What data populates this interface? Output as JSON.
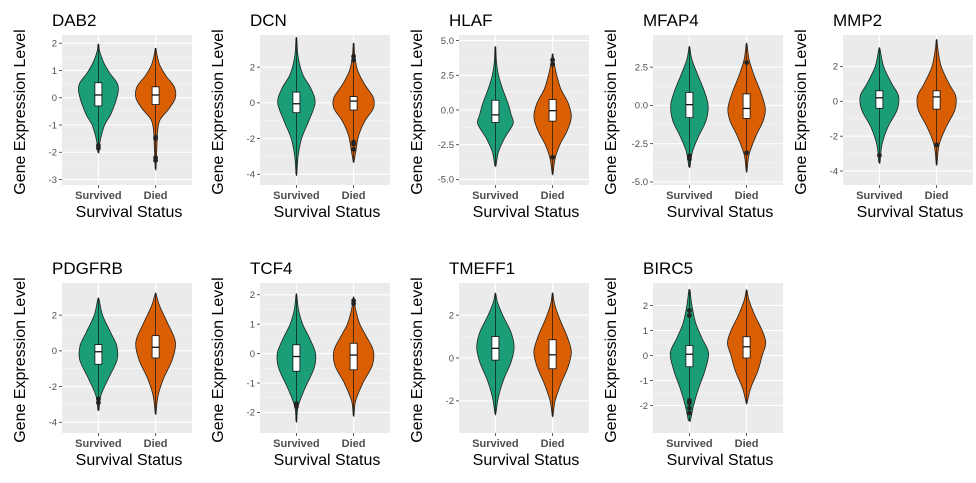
{
  "chart_data": [
    {
      "type": "violin",
      "title": "DAB2",
      "xlabel": "Survival Status",
      "ylabel": "Gene Expression Level",
      "categories": [
        "Survived",
        "Died"
      ],
      "ylim": [
        -3.2,
        2.3
      ],
      "yticks": [
        -3,
        -2,
        -1,
        0,
        1,
        2
      ],
      "tick_labels": [
        "-3",
        "-2",
        "-1",
        "0",
        "1",
        "2"
      ],
      "series": [
        {
          "data_min": -2.0,
          "q1": -0.3,
          "median": 0.1,
          "q3": 0.55,
          "data_max": 1.95,
          "widths": [
            [
              -2.0,
              0.03
            ],
            [
              -1.6,
              0.08
            ],
            [
              -1.0,
              0.3
            ],
            [
              -0.6,
              0.6
            ],
            [
              0.1,
              0.92
            ],
            [
              0.5,
              0.92
            ],
            [
              0.9,
              0.55
            ],
            [
              1.3,
              0.25
            ],
            [
              1.7,
              0.06
            ],
            [
              1.95,
              0.02
            ]
          ],
          "outliers": [
            -1.85,
            -1.75
          ]
        },
        {
          "data_min": -2.6,
          "q1": -0.25,
          "median": 0.1,
          "q3": 0.4,
          "data_max": 1.8,
          "widths": [
            [
              -2.6,
              0.02
            ],
            [
              -1.8,
              0.06
            ],
            [
              -1.2,
              0.1
            ],
            [
              -0.8,
              0.22
            ],
            [
              -0.4,
              0.65
            ],
            [
              0.0,
              0.95
            ],
            [
              0.4,
              0.9
            ],
            [
              0.8,
              0.5
            ],
            [
              1.2,
              0.2
            ],
            [
              1.6,
              0.06
            ],
            [
              1.8,
              0.02
            ]
          ],
          "outliers": [
            -2.3,
            -2.2,
            -1.5,
            -1.45
          ]
        }
      ]
    },
    {
      "type": "violin",
      "title": "DCN",
      "xlabel": "Survival Status",
      "ylabel": "Gene Expression Level",
      "categories": [
        "Survived",
        "Died"
      ],
      "ylim": [
        -4.6,
        3.8
      ],
      "yticks": [
        -4,
        -2,
        0,
        2
      ],
      "tick_labels": [
        "-4",
        "-2",
        "0",
        "2"
      ],
      "series": [
        {
          "data_min": -4.0,
          "q1": -0.55,
          "median": -0.05,
          "q3": 0.6,
          "data_max": 3.6,
          "widths": [
            [
              -4.0,
              0.02
            ],
            [
              -3.0,
              0.08
            ],
            [
              -2.0,
              0.25
            ],
            [
              -1.0,
              0.6
            ],
            [
              0.0,
              0.9
            ],
            [
              0.8,
              0.7
            ],
            [
              1.6,
              0.3
            ],
            [
              2.6,
              0.08
            ],
            [
              3.6,
              0.02
            ]
          ],
          "outliers": []
        },
        {
          "data_min": -3.3,
          "q1": -0.4,
          "median": 0.1,
          "q3": 0.35,
          "data_max": 3.3,
          "widths": [
            [
              -3.3,
              0.02
            ],
            [
              -2.6,
              0.12
            ],
            [
              -1.8,
              0.25
            ],
            [
              -1.0,
              0.55
            ],
            [
              -0.3,
              0.95
            ],
            [
              0.3,
              0.95
            ],
            [
              1.0,
              0.55
            ],
            [
              1.8,
              0.2
            ],
            [
              2.6,
              0.06
            ],
            [
              3.3,
              0.02
            ]
          ],
          "outliers": [
            -2.6,
            -2.3,
            -2.2,
            2.6,
            2.4
          ]
        }
      ]
    },
    {
      "type": "violin",
      "title": "HLAF",
      "xlabel": "Survival Status",
      "ylabel": "Gene Expression Level",
      "categories": [
        "Survived",
        "Died"
      ],
      "ylim": [
        -5.4,
        5.4
      ],
      "yticks": [
        -5,
        -2.5,
        0,
        2.5,
        5
      ],
      "tick_labels": [
        "-5.0",
        "-2.5",
        "0.0",
        "2.5",
        "5.0"
      ],
      "series": [
        {
          "data_min": -4.0,
          "q1": -0.9,
          "median": -0.35,
          "q3": 0.7,
          "data_max": 4.5,
          "widths": [
            [
              -4.0,
              0.03
            ],
            [
              -3.0,
              0.15
            ],
            [
              -2.0,
              0.45
            ],
            [
              -1.0,
              0.85
            ],
            [
              -0.3,
              0.75
            ],
            [
              0.5,
              0.6
            ],
            [
              1.5,
              0.35
            ],
            [
              2.5,
              0.15
            ],
            [
              3.5,
              0.05
            ],
            [
              4.5,
              0.02
            ]
          ],
          "outliers": []
        },
        {
          "data_min": -4.6,
          "q1": -0.8,
          "median": -0.05,
          "q3": 0.75,
          "data_max": 4.0,
          "widths": [
            [
              -4.6,
              0.02
            ],
            [
              -3.5,
              0.12
            ],
            [
              -2.5,
              0.35
            ],
            [
              -1.5,
              0.7
            ],
            [
              -0.5,
              0.9
            ],
            [
              0.5,
              0.75
            ],
            [
              1.5,
              0.4
            ],
            [
              2.5,
              0.2
            ],
            [
              3.5,
              0.06
            ],
            [
              4.0,
              0.02
            ]
          ],
          "outliers": [
            -3.4,
            3.6,
            3.3
          ]
        }
      ]
    },
    {
      "type": "violin",
      "title": "MFAP4",
      "xlabel": "Survival Status",
      "ylabel": "Gene Expression Level",
      "categories": [
        "Survived",
        "Died"
      ],
      "ylim": [
        -5.2,
        4.6
      ],
      "yticks": [
        -5,
        -2.5,
        0,
        2.5
      ],
      "tick_labels": [
        "-5.0",
        "-2.5",
        "0.0",
        "2.5"
      ],
      "series": [
        {
          "data_min": -4.0,
          "q1": -0.8,
          "median": 0.05,
          "q3": 0.85,
          "data_max": 3.8,
          "widths": [
            [
              -4.0,
              0.03
            ],
            [
              -3.0,
              0.15
            ],
            [
              -2.0,
              0.45
            ],
            [
              -1.0,
              0.8
            ],
            [
              0.0,
              0.9
            ],
            [
              1.0,
              0.7
            ],
            [
              2.0,
              0.4
            ],
            [
              3.0,
              0.12
            ],
            [
              3.8,
              0.02
            ]
          ],
          "outliers": [
            -3.3,
            -3.5
          ]
        },
        {
          "data_min": -4.3,
          "q1": -0.85,
          "median": -0.2,
          "q3": 0.75,
          "data_max": 4.0,
          "widths": [
            [
              -4.3,
              0.02
            ],
            [
              -3.2,
              0.12
            ],
            [
              -2.0,
              0.45
            ],
            [
              -1.0,
              0.8
            ],
            [
              -0.2,
              0.9
            ],
            [
              0.8,
              0.7
            ],
            [
              2.0,
              0.35
            ],
            [
              3.0,
              0.12
            ],
            [
              4.0,
              0.02
            ]
          ],
          "outliers": [
            -3.1,
            2.8
          ]
        }
      ]
    },
    {
      "type": "violin",
      "title": "MMP2",
      "xlabel": "Survival Status",
      "ylabel": "Gene Expression Level",
      "categories": [
        "Survived",
        "Died"
      ],
      "ylim": [
        -4.8,
        3.8
      ],
      "yticks": [
        -4,
        -2,
        0,
        2
      ],
      "tick_labels": [
        "-4",
        "-2",
        "0",
        "2"
      ],
      "series": [
        {
          "data_min": -3.5,
          "q1": -0.4,
          "median": 0.2,
          "q3": 0.6,
          "data_max": 3.0,
          "widths": [
            [
              -3.5,
              0.03
            ],
            [
              -2.5,
              0.12
            ],
            [
              -1.5,
              0.4
            ],
            [
              -0.5,
              0.85
            ],
            [
              0.3,
              0.92
            ],
            [
              1.0,
              0.6
            ],
            [
              2.0,
              0.2
            ],
            [
              3.0,
              0.03
            ]
          ],
          "outliers": [
            -3.1
          ]
        },
        {
          "data_min": -3.6,
          "q1": -0.45,
          "median": 0.25,
          "q3": 0.6,
          "data_max": 3.5,
          "widths": [
            [
              -3.6,
              0.02
            ],
            [
              -2.5,
              0.12
            ],
            [
              -1.5,
              0.45
            ],
            [
              -0.5,
              0.88
            ],
            [
              0.3,
              0.92
            ],
            [
              1.0,
              0.6
            ],
            [
              2.0,
              0.22
            ],
            [
              3.0,
              0.06
            ],
            [
              3.5,
              0.02
            ]
          ],
          "outliers": [
            -2.5
          ]
        }
      ]
    },
    {
      "type": "violin",
      "title": "PDGFRB",
      "xlabel": "Survival Status",
      "ylabel": "Gene Expression Level",
      "categories": [
        "Survived",
        "Died"
      ],
      "ylim": [
        -4.6,
        3.8
      ],
      "yticks": [
        -4,
        -2,
        0,
        2
      ],
      "tick_labels": [
        "-4",
        "-2",
        "0",
        "2"
      ],
      "series": [
        {
          "data_min": -3.3,
          "q1": -0.75,
          "median": -0.05,
          "q3": 0.35,
          "data_max": 2.9,
          "widths": [
            [
              -3.3,
              0.03
            ],
            [
              -2.5,
              0.12
            ],
            [
              -1.5,
              0.5
            ],
            [
              -0.5,
              0.9
            ],
            [
              0.3,
              0.88
            ],
            [
              1.0,
              0.6
            ],
            [
              2.0,
              0.2
            ],
            [
              2.9,
              0.03
            ]
          ],
          "outliers": [
            -2.9,
            -2.7
          ]
        },
        {
          "data_min": -3.5,
          "q1": -0.4,
          "median": 0.2,
          "q3": 0.85,
          "data_max": 3.2,
          "widths": [
            [
              -3.5,
              0.02
            ],
            [
              -2.5,
              0.12
            ],
            [
              -1.5,
              0.4
            ],
            [
              -0.5,
              0.8
            ],
            [
              0.5,
              0.95
            ],
            [
              1.5,
              0.6
            ],
            [
              2.5,
              0.2
            ],
            [
              3.2,
              0.02
            ]
          ],
          "outliers": []
        }
      ]
    },
    {
      "type": "violin",
      "title": "TCF4",
      "xlabel": "Survival Status",
      "ylabel": "Gene Expression Level",
      "categories": [
        "Survived",
        "Died"
      ],
      "ylim": [
        -2.7,
        2.4
      ],
      "yticks": [
        -2,
        -1,
        0,
        1,
        2
      ],
      "tick_labels": [
        "-2",
        "-1",
        "0",
        "1",
        "2"
      ],
      "series": [
        {
          "data_min": -2.3,
          "q1": -0.6,
          "median": -0.1,
          "q3": 0.3,
          "data_max": 2.0,
          "widths": [
            [
              -2.3,
              0.02
            ],
            [
              -1.8,
              0.08
            ],
            [
              -1.2,
              0.4
            ],
            [
              -0.5,
              0.85
            ],
            [
              0.0,
              0.92
            ],
            [
              0.5,
              0.65
            ],
            [
              1.0,
              0.3
            ],
            [
              1.5,
              0.1
            ],
            [
              2.0,
              0.02
            ]
          ],
          "outliers": [
            -1.7,
            -1.8
          ]
        },
        {
          "data_min": -2.1,
          "q1": -0.55,
          "median": -0.05,
          "q3": 0.35,
          "data_max": 1.9,
          "widths": [
            [
              -2.1,
              0.02
            ],
            [
              -1.6,
              0.1
            ],
            [
              -1.0,
              0.45
            ],
            [
              -0.4,
              0.9
            ],
            [
              0.1,
              0.95
            ],
            [
              0.6,
              0.6
            ],
            [
              1.0,
              0.3
            ],
            [
              1.5,
              0.1
            ],
            [
              1.9,
              0.02
            ]
          ],
          "outliers": [
            1.8,
            1.7
          ]
        }
      ]
    },
    {
      "type": "violin",
      "title": "TMEFF1",
      "xlabel": "Survival Status",
      "ylabel": "Gene Expression Level",
      "categories": [
        "Survived",
        "Died"
      ],
      "ylim": [
        -3.5,
        3.5
      ],
      "yticks": [
        -2,
        0,
        2
      ],
      "tick_labels": [
        "-2",
        "0",
        "2"
      ],
      "series": [
        {
          "data_min": -2.6,
          "q1": -0.1,
          "median": 0.45,
          "q3": 1.0,
          "data_max": 3.0,
          "widths": [
            [
              -2.6,
              0.02
            ],
            [
              -1.8,
              0.15
            ],
            [
              -1.0,
              0.4
            ],
            [
              -0.2,
              0.75
            ],
            [
              0.5,
              0.9
            ],
            [
              1.2,
              0.75
            ],
            [
              2.0,
              0.35
            ],
            [
              2.6,
              0.1
            ],
            [
              3.0,
              0.02
            ]
          ],
          "outliers": []
        },
        {
          "data_min": -2.7,
          "q1": -0.5,
          "median": 0.15,
          "q3": 0.85,
          "data_max": 3.0,
          "widths": [
            [
              -2.7,
              0.02
            ],
            [
              -2.0,
              0.12
            ],
            [
              -1.2,
              0.4
            ],
            [
              -0.4,
              0.75
            ],
            [
              0.3,
              0.9
            ],
            [
              1.0,
              0.7
            ],
            [
              1.8,
              0.35
            ],
            [
              2.5,
              0.1
            ],
            [
              3.0,
              0.02
            ]
          ],
          "outliers": []
        }
      ]
    },
    {
      "type": "violin",
      "title": "BIRC5",
      "xlabel": "Survival Status",
      "ylabel": "Gene Expression Level",
      "categories": [
        "Survived",
        "Died"
      ],
      "ylim": [
        -3.1,
        2.9
      ],
      "yticks": [
        -2,
        -1,
        0,
        1,
        2
      ],
      "tick_labels": [
        "-2",
        "-1",
        "0",
        "1",
        "2"
      ],
      "series": [
        {
          "data_min": -2.6,
          "q1": -0.45,
          "median": 0.05,
          "q3": 0.4,
          "data_max": 2.6,
          "widths": [
            [
              -2.6,
              0.05
            ],
            [
              -2.0,
              0.2
            ],
            [
              -1.3,
              0.45
            ],
            [
              -0.6,
              0.75
            ],
            [
              0.1,
              0.92
            ],
            [
              0.7,
              0.6
            ],
            [
              1.3,
              0.3
            ],
            [
              2.0,
              0.12
            ],
            [
              2.6,
              0.03
            ]
          ],
          "outliers": [
            -2.3,
            -2.1,
            -1.9,
            -1.8,
            1.8,
            1.6
          ]
        },
        {
          "data_min": -1.9,
          "q1": -0.1,
          "median": 0.35,
          "q3": 0.75,
          "data_max": 2.6,
          "widths": [
            [
              -1.9,
              0.02
            ],
            [
              -1.3,
              0.2
            ],
            [
              -0.6,
              0.55
            ],
            [
              0.0,
              0.75
            ],
            [
              0.5,
              0.92
            ],
            [
              1.0,
              0.75
            ],
            [
              1.6,
              0.4
            ],
            [
              2.2,
              0.12
            ],
            [
              2.6,
              0.02
            ]
          ],
          "outliers": []
        }
      ]
    }
  ],
  "colors": {
    "survived_fill": "#1b9e77",
    "died_fill": "#d95f02",
    "panel_bg": "#ebebeb",
    "grid_major": "#ffffff"
  }
}
